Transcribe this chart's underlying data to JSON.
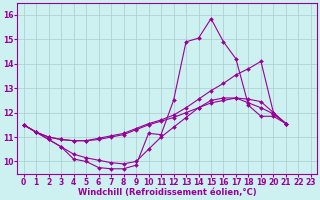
{
  "xlabel": "Windchill (Refroidissement éolien,°C)",
  "background_color": "#cdf0f0",
  "line_color": "#990099",
  "grid_color": "#aacccc",
  "xlim": [
    -0.5,
    23.5
  ],
  "ylim": [
    9.5,
    16.5
  ],
  "yticks": [
    10,
    11,
    12,
    13,
    14,
    15,
    16
  ],
  "xticks": [
    0,
    1,
    2,
    3,
    4,
    5,
    6,
    7,
    8,
    9,
    10,
    11,
    12,
    13,
    14,
    15,
    16,
    17,
    18,
    19,
    20,
    21,
    22,
    23
  ],
  "series": [
    {
      "x": [
        0,
        1,
        2,
        3,
        4,
        5,
        6,
        7,
        8,
        9,
        10,
        11,
        12,
        13,
        14,
        15,
        16,
        17,
        18,
        19,
        20,
        21,
        22,
        23
      ],
      "y": [
        11.5,
        11.2,
        10.9,
        10.6,
        10.1,
        10.0,
        9.75,
        9.7,
        9.7,
        9.85,
        11.15,
        11.1,
        12.5,
        14.9,
        15.05,
        15.85,
        14.9,
        14.2,
        12.3,
        11.85,
        11.85,
        11.55,
        null,
        null
      ]
    },
    {
      "x": [
        0,
        1,
        2,
        3,
        4,
        5,
        6,
        7,
        8,
        9,
        10,
        11,
        12,
        13,
        14,
        15,
        16,
        17,
        18,
        19,
        20,
        21,
        22,
        23
      ],
      "y": [
        11.5,
        11.2,
        11.0,
        10.9,
        10.85,
        10.85,
        10.95,
        11.05,
        11.15,
        11.35,
        11.55,
        11.7,
        11.9,
        12.2,
        12.55,
        12.9,
        13.2,
        13.55,
        13.8,
        14.1,
        12.0,
        11.55,
        null,
        null
      ]
    },
    {
      "x": [
        0,
        1,
        2,
        3,
        4,
        5,
        6,
        7,
        8,
        9,
        10,
        11,
        12,
        13,
        14,
        15,
        16,
        17,
        18,
        19,
        20,
        21,
        22,
        23
      ],
      "y": [
        11.5,
        11.2,
        11.0,
        10.9,
        10.85,
        10.85,
        10.9,
        11.0,
        11.1,
        11.3,
        11.5,
        11.65,
        11.8,
        12.0,
        12.2,
        12.4,
        12.5,
        12.6,
        12.55,
        12.45,
        12.0,
        11.55,
        null,
        null
      ]
    },
    {
      "x": [
        0,
        1,
        2,
        3,
        4,
        5,
        6,
        7,
        8,
        9,
        10,
        11,
        12,
        13,
        14,
        15,
        16,
        17,
        18,
        19,
        20,
        21,
        22,
        23
      ],
      "y": [
        11.5,
        11.2,
        10.9,
        10.6,
        10.3,
        10.15,
        10.05,
        9.95,
        9.9,
        10.0,
        10.5,
        11.0,
        11.4,
        11.8,
        12.2,
        12.5,
        12.6,
        12.6,
        12.4,
        12.2,
        11.95,
        11.55,
        null,
        null
      ]
    }
  ],
  "marker": "D",
  "markersize": 2.0,
  "linewidth": 0.8,
  "xlabel_fontsize": 6,
  "tick_fontsize": 5.5
}
